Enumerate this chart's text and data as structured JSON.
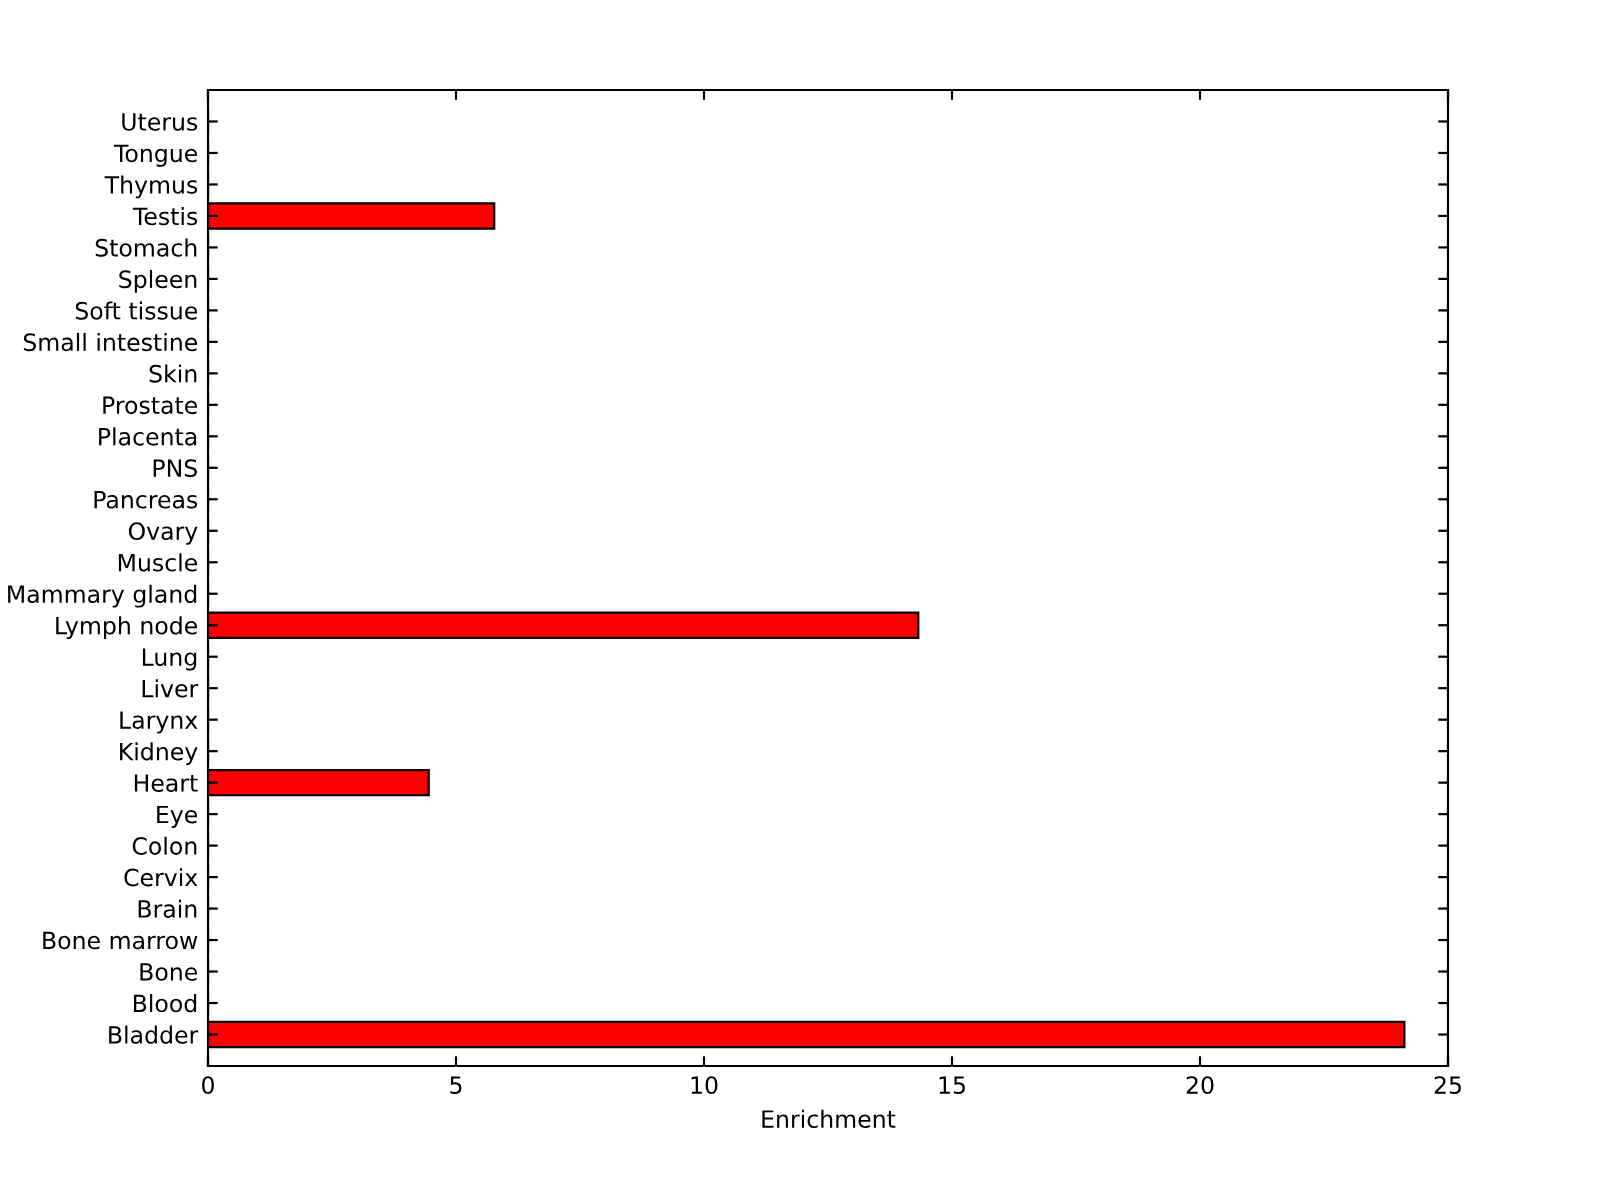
{
  "chart_data": {
    "type": "bar",
    "orientation": "horizontal",
    "xlabel": "Enrichment",
    "categories": [
      "Uterus",
      "Tongue",
      "Thymus",
      "Testis",
      "Stomach",
      "Spleen",
      "Soft tissue",
      "Small intestine",
      "Skin",
      "Prostate",
      "Placenta",
      "PNS",
      "Pancreas",
      "Ovary",
      "Muscle",
      "Mammary gland",
      "Lymph node",
      "Lung",
      "Liver",
      "Larynx",
      "Kidney",
      "Heart",
      "Eye",
      "Colon",
      "Cervix",
      "Brain",
      "Bone marrow",
      "Bone",
      "Blood",
      "Bladder"
    ],
    "values": [
      0,
      0,
      0,
      5.77,
      0,
      0,
      0,
      0,
      0,
      0,
      0,
      0,
      0,
      0,
      0,
      0,
      14.32,
      0,
      0,
      0,
      0,
      4.45,
      0,
      0,
      0,
      0,
      0,
      0,
      0,
      24.12
    ],
    "color": "#ff0000",
    "xlim": [
      0,
      25
    ],
    "xticks": [
      0,
      5,
      10,
      15,
      20,
      25
    ],
    "grid": false,
    "legend": false
  }
}
